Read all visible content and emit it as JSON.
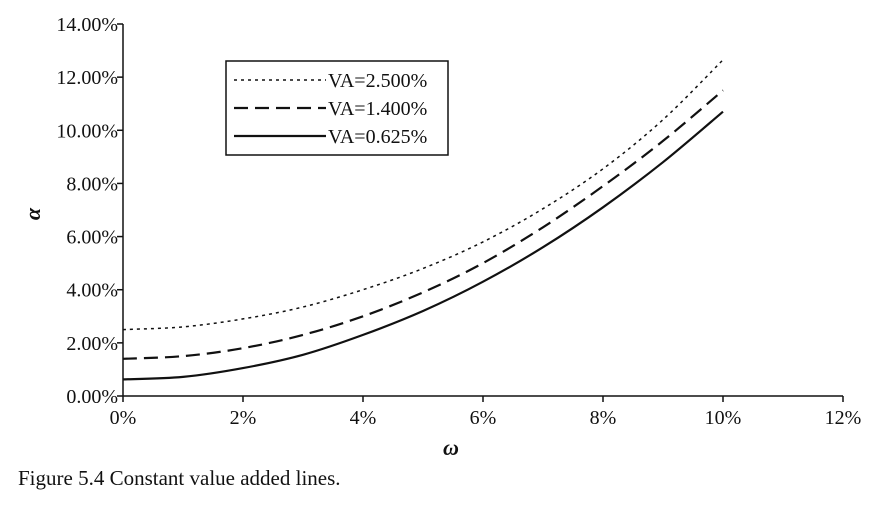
{
  "chart_data": {
    "type": "line",
    "title": "",
    "xlabel": "ω",
    "ylabel": "α",
    "xlim": [
      0,
      12
    ],
    "ylim": [
      0,
      14
    ],
    "x_ticks": [
      0,
      2,
      4,
      6,
      8,
      10,
      12
    ],
    "x_tick_labels": [
      "0%",
      "2%",
      "4%",
      "6%",
      "8%",
      "10%",
      "12%"
    ],
    "y_ticks": [
      0,
      2,
      4,
      6,
      8,
      10,
      12,
      14
    ],
    "y_tick_labels": [
      "0.00%",
      "2.00%",
      "4.00%",
      "6.00%",
      "8.00%",
      "10.00%",
      "12.00%",
      "14.00%"
    ],
    "grid": false,
    "legend_position": "top-left",
    "series": [
      {
        "name": "VA=2.500%",
        "style": "dotted",
        "x": [
          0,
          1,
          2,
          3,
          4,
          5,
          6,
          7,
          8,
          9,
          10
        ],
        "y": [
          2.5,
          2.6,
          2.9,
          3.35,
          4.0,
          4.8,
          5.8,
          7.05,
          8.55,
          10.4,
          12.65
        ]
      },
      {
        "name": "VA=1.400%",
        "style": "dashed",
        "x": [
          0,
          1,
          2,
          3,
          4,
          5,
          6,
          7,
          8,
          9,
          10
        ],
        "y": [
          1.4,
          1.5,
          1.8,
          2.3,
          3.0,
          3.9,
          5.0,
          6.35,
          7.9,
          9.6,
          11.5
        ]
      },
      {
        "name": "VA=0.625%",
        "style": "solid",
        "x": [
          0,
          1,
          2,
          3,
          4,
          5,
          6,
          7,
          8,
          9,
          10
        ],
        "y": [
          0.625,
          0.72,
          1.05,
          1.55,
          2.3,
          3.2,
          4.3,
          5.6,
          7.1,
          8.8,
          10.7
        ]
      }
    ]
  },
  "caption": "Figure 5.4 Constant value added lines."
}
